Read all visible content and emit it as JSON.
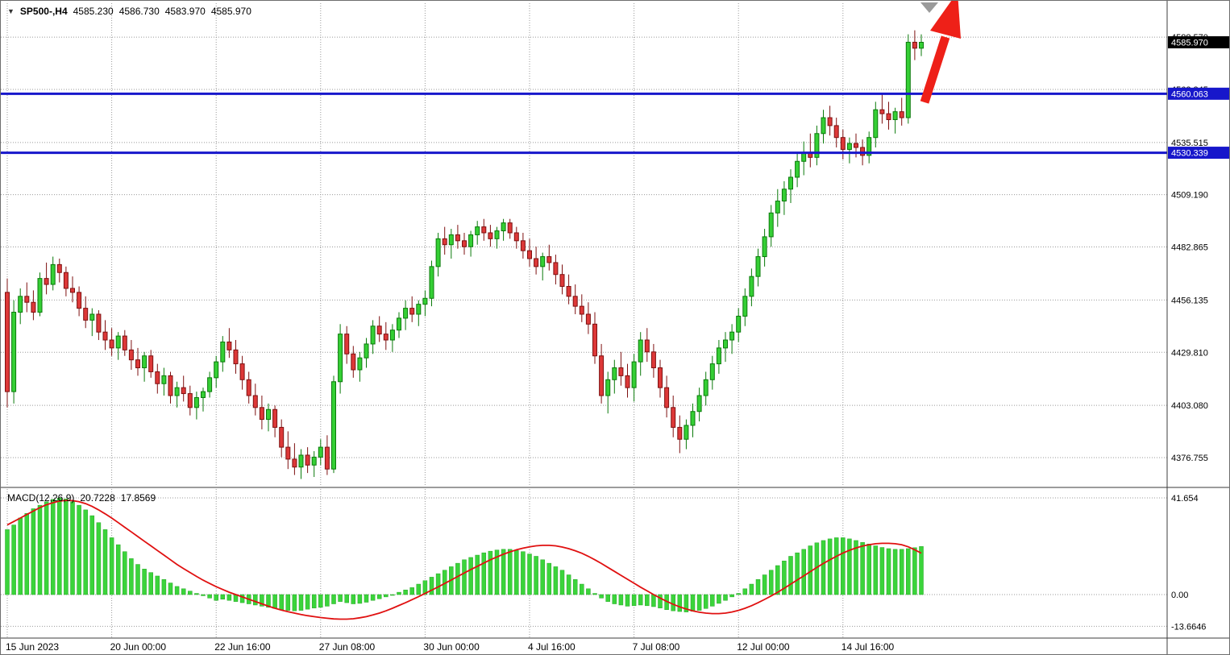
{
  "header": {
    "collapse_glyph": "▼",
    "symbol": "SP500-,H4",
    "open": "4585.230",
    "high": "4586.730",
    "low": "4583.970",
    "close": "4585.970"
  },
  "macd_header": {
    "label": "MACD(12,26,9)",
    "main_value": "20.7228",
    "signal_value": "17.8569"
  },
  "colors": {
    "bull": "#35cf35",
    "bull_border": "#0a7a0a",
    "bear": "#dd3838",
    "bear_border": "#7e1010",
    "hline": "#1717cb",
    "grid": "#999999",
    "macd_bar": "#3bd43b",
    "macd_bar_border": "#23a623",
    "signal": "#e01010",
    "arrow": "#ee2018",
    "last_badge_bg": "#000000"
  },
  "chart_data": {
    "type": "candlestick_with_macd",
    "title": "SP500-,H4",
    "symbol": "SP500",
    "timeframe": "H4",
    "ohlc_quote": {
      "open": 4585.23,
      "high": 4586.73,
      "low": 4583.97,
      "close": 4585.97
    },
    "last_price": 4585.97,
    "last_price_label": "4585.970",
    "y_axis": {
      "side": "right",
      "labels": [
        "4588.570",
        "4562.245",
        "4535.515",
        "4509.190",
        "4482.865",
        "4456.135",
        "4429.810",
        "4403.080",
        "4376.755"
      ]
    },
    "x_axis": {
      "label_every_n_candles": 16,
      "labels": [
        "15 Jun 2023",
        "20 Jun 00:00",
        "22 Jun 16:00",
        "27 Jun 08:00",
        "30 Jun 00:00",
        "4 Jul 16:00",
        "7 Jul 08:00",
        "12 Jul 00:00",
        "14 Jul 16:00"
      ]
    },
    "horizontal_lines": [
      {
        "price": 4560.063,
        "label": "4560.063"
      },
      {
        "price": 4530.339,
        "label": "4530.339"
      }
    ],
    "annotations": [
      {
        "type": "arrow",
        "direction": "up",
        "color": "red",
        "position": "top-right"
      }
    ],
    "candles": [
      [
        4460,
        4467,
        4402,
        4410
      ],
      [
        4410,
        4456,
        4404,
        4450
      ],
      [
        4450,
        4462,
        4444,
        4458
      ],
      [
        4458,
        4465,
        4450,
        4455
      ],
      [
        4455,
        4461,
        4446,
        4450
      ],
      [
        4450,
        4470,
        4448,
        4467
      ],
      [
        4467,
        4475,
        4459,
        4464
      ],
      [
        4464,
        4478,
        4461,
        4474
      ],
      [
        4474,
        4477,
        4465,
        4470
      ],
      [
        4470,
        4473,
        4458,
        4462
      ],
      [
        4462,
        4468,
        4455,
        4460
      ],
      [
        4460,
        4463,
        4448,
        4452
      ],
      [
        4452,
        4458,
        4442,
        4446
      ],
      [
        4446,
        4452,
        4438,
        4449
      ],
      [
        4449,
        4451,
        4436,
        4440
      ],
      [
        4440,
        4446,
        4431,
        4436
      ],
      [
        4436,
        4442,
        4428,
        4432
      ],
      [
        4432,
        4440,
        4426,
        4438
      ],
      [
        4438,
        4441,
        4428,
        4431
      ],
      [
        4431,
        4436,
        4421,
        4426
      ],
      [
        4426,
        4432,
        4418,
        4422
      ],
      [
        4422,
        4430,
        4415,
        4428
      ],
      [
        4428,
        4431,
        4417,
        4420
      ],
      [
        4420,
        4424,
        4409,
        4414
      ],
      [
        4414,
        4422,
        4408,
        4418
      ],
      [
        4418,
        4420,
        4404,
        4408
      ],
      [
        4408,
        4415,
        4402,
        4412
      ],
      [
        4412,
        4418,
        4405,
        4409
      ],
      [
        4409,
        4413,
        4398,
        4402
      ],
      [
        4402,
        4410,
        4396,
        4407
      ],
      [
        4407,
        4412,
        4400,
        4410
      ],
      [
        4410,
        4420,
        4407,
        4417
      ],
      [
        4417,
        4428,
        4412,
        4425
      ],
      [
        4425,
        4438,
        4420,
        4435
      ],
      [
        4435,
        4442,
        4427,
        4431
      ],
      [
        4431,
        4436,
        4419,
        4424
      ],
      [
        4424,
        4428,
        4411,
        4416
      ],
      [
        4416,
        4420,
        4404,
        4408
      ],
      [
        4408,
        4414,
        4398,
        4402
      ],
      [
        4402,
        4408,
        4391,
        4396
      ],
      [
        4396,
        4404,
        4390,
        4401
      ],
      [
        4401,
        4403,
        4387,
        4392
      ],
      [
        4392,
        4396,
        4377,
        4382
      ],
      [
        4382,
        4390,
        4371,
        4376
      ],
      [
        4376,
        4384,
        4368,
        4372
      ],
      [
        4372,
        4381,
        4366,
        4378
      ],
      [
        4378,
        4382,
        4369,
        4373
      ],
      [
        4373,
        4380,
        4367,
        4377
      ],
      [
        4377,
        4386,
        4373,
        4382
      ],
      [
        4382,
        4388,
        4368,
        4371
      ],
      [
        4371,
        4418,
        4369,
        4415
      ],
      [
        4415,
        4444,
        4409,
        4439
      ],
      [
        4439,
        4443,
        4424,
        4429
      ],
      [
        4429,
        4433,
        4417,
        4421
      ],
      [
        4421,
        4430,
        4415,
        4427
      ],
      [
        4427,
        4437,
        4422,
        4434
      ],
      [
        4434,
        4446,
        4429,
        4443
      ],
      [
        4443,
        4448,
        4435,
        4439
      ],
      [
        4439,
        4445,
        4431,
        4436
      ],
      [
        4436,
        4444,
        4430,
        4441
      ],
      [
        4441,
        4450,
        4437,
        4447
      ],
      [
        4447,
        4456,
        4441,
        4452
      ],
      [
        4452,
        4458,
        4445,
        4449
      ],
      [
        4449,
        4456,
        4443,
        4454
      ],
      [
        4454,
        4461,
        4448,
        4457
      ],
      [
        4457,
        4476,
        4453,
        4473
      ],
      [
        4473,
        4490,
        4468,
        4487
      ],
      [
        4487,
        4493,
        4479,
        4484
      ],
      [
        4484,
        4492,
        4477,
        4489
      ],
      [
        4489,
        4494,
        4482,
        4486
      ],
      [
        4486,
        4490,
        4479,
        4483
      ],
      [
        4483,
        4491,
        4478,
        4489
      ],
      [
        4489,
        4496,
        4484,
        4493
      ],
      [
        4493,
        4497,
        4486,
        4490
      ],
      [
        4490,
        4494,
        4483,
        4487
      ],
      [
        4487,
        4493,
        4482,
        4491
      ],
      [
        4491,
        4497,
        4486,
        4495
      ],
      [
        4495,
        4497,
        4487,
        4490
      ],
      [
        4490,
        4493,
        4482,
        4486
      ],
      [
        4486,
        4490,
        4477,
        4481
      ],
      [
        4481,
        4487,
        4473,
        4477
      ],
      [
        4477,
        4483,
        4469,
        4473
      ],
      [
        4473,
        4480,
        4466,
        4478
      ],
      [
        4478,
        4484,
        4471,
        4475
      ],
      [
        4475,
        4479,
        4464,
        4469
      ],
      [
        4469,
        4474,
        4459,
        4463
      ],
      [
        4463,
        4469,
        4454,
        4458
      ],
      [
        4458,
        4464,
        4449,
        4453
      ],
      [
        4453,
        4459,
        4445,
        4449
      ],
      [
        4449,
        4455,
        4439,
        4444
      ],
      [
        4444,
        4450,
        4424,
        4428
      ],
      [
        4428,
        4434,
        4404,
        4408
      ],
      [
        4408,
        4420,
        4399,
        4416
      ],
      [
        4416,
        4426,
        4409,
        4422
      ],
      [
        4422,
        4430,
        4413,
        4418
      ],
      [
        4418,
        4424,
        4407,
        4412
      ],
      [
        4412,
        4429,
        4405,
        4425
      ],
      [
        4425,
        4440,
        4418,
        4436
      ],
      [
        4436,
        4442,
        4425,
        4430
      ],
      [
        4430,
        4434,
        4417,
        4422
      ],
      [
        4422,
        4426,
        4407,
        4412
      ],
      [
        4412,
        4418,
        4397,
        4402
      ],
      [
        4402,
        4408,
        4387,
        4392
      ],
      [
        4392,
        4398,
        4379,
        4386
      ],
      [
        4386,
        4396,
        4381,
        4393
      ],
      [
        4393,
        4404,
        4387,
        4400
      ],
      [
        4400,
        4412,
        4395,
        4408
      ],
      [
        4408,
        4420,
        4403,
        4416
      ],
      [
        4416,
        4428,
        4411,
        4424
      ],
      [
        4424,
        4436,
        4419,
        4432
      ],
      [
        4432,
        4440,
        4425,
        4436
      ],
      [
        4436,
        4444,
        4429,
        4440
      ],
      [
        4440,
        4452,
        4435,
        4448
      ],
      [
        4448,
        4462,
        4443,
        4458
      ],
      [
        4458,
        4472,
        4453,
        4468
      ],
      [
        4468,
        4482,
        4463,
        4478
      ],
      [
        4478,
        4492,
        4473,
        4488
      ],
      [
        4488,
        4504,
        4483,
        4500
      ],
      [
        4500,
        4512,
        4493,
        4506
      ],
      [
        4506,
        4516,
        4499,
        4512
      ],
      [
        4512,
        4522,
        4505,
        4518
      ],
      [
        4518,
        4530,
        4513,
        4526
      ],
      [
        4526,
        4536,
        4519,
        4530
      ],
      [
        4530,
        4540,
        4523,
        4528
      ],
      [
        4528,
        4544,
        4524,
        4540
      ],
      [
        4540,
        4552,
        4535,
        4548
      ],
      [
        4548,
        4554,
        4539,
        4544
      ],
      [
        4544,
        4548,
        4533,
        4538
      ],
      [
        4538,
        4542,
        4527,
        4532
      ],
      [
        4532,
        4538,
        4525,
        4535
      ],
      [
        4535,
        4540,
        4528,
        4533
      ],
      [
        4533,
        4537,
        4524,
        4529
      ],
      [
        4529,
        4541,
        4525,
        4538
      ],
      [
        4538,
        4556,
        4533,
        4552
      ],
      [
        4552,
        4560,
        4545,
        4550
      ],
      [
        4550,
        4556,
        4542,
        4547
      ],
      [
        4547,
        4553,
        4540,
        4551
      ],
      [
        4551,
        4558,
        4544,
        4548
      ],
      [
        4548,
        4590,
        4545,
        4586
      ],
      [
        4586,
        4592,
        4577,
        4583
      ],
      [
        4583,
        4590,
        4579,
        4585.97
      ]
    ],
    "macd": {
      "name": "MACD",
      "params": "12,26,9",
      "current_macd": 20.7228,
      "current_signal": 17.8569,
      "levels": [
        "41.654",
        "0.00",
        "-13.6646"
      ],
      "histogram": [
        28,
        30,
        33,
        35,
        37,
        38.5,
        40,
        41,
        41.6,
        41.2,
        40,
        38.5,
        36.5,
        34,
        31,
        28,
        24.5,
        21.5,
        18.5,
        15.5,
        13,
        11,
        9.5,
        8,
        6.5,
        5,
        3.5,
        2.5,
        1.5,
        0.5,
        -0.5,
        -1.5,
        -2.5,
        -2,
        -2.5,
        -3,
        -3.5,
        -4,
        -4.5,
        -5,
        -5.5,
        -6,
        -6.5,
        -6.8,
        -7,
        -6.8,
        -6.3,
        -5.8,
        -5.5,
        -5,
        -4,
        -3,
        -3.5,
        -4,
        -3.8,
        -3.3,
        -2.5,
        -1.8,
        -1,
        0,
        1,
        2,
        3,
        4.5,
        6,
        7.5,
        9,
        10.5,
        12,
        13.5,
        15,
        16,
        17,
        18,
        18.7,
        19.2,
        19.5,
        19.5,
        19,
        18.5,
        17.5,
        16.5,
        15,
        13.5,
        12,
        10.5,
        8.5,
        6.5,
        4.5,
        2.5,
        0.5,
        -1.5,
        -3,
        -4,
        -4.5,
        -5,
        -4.8,
        -4.5,
        -4.8,
        -5.2,
        -5.8,
        -6.5,
        -7,
        -7.3,
        -7.5,
        -7.2,
        -6.8,
        -6,
        -5,
        -3.8,
        -2.5,
        -1,
        0.5,
        2.5,
        4.5,
        6.5,
        8.5,
        10.5,
        12.5,
        14.5,
        16.5,
        18,
        19.5,
        21,
        22.3,
        23.3,
        24,
        24.5,
        24.5,
        24,
        23.3,
        22.5,
        21.8,
        21,
        20.3,
        19.8,
        19.5,
        19.5,
        19.8,
        20.2,
        20.7228
      ],
      "signal": [
        30,
        31.5,
        33,
        34.5,
        36,
        37.5,
        38.7,
        39.6,
        40.3,
        40.6,
        40.5,
        40,
        39.2,
        38,
        36.5,
        34.8,
        33,
        31,
        29,
        27,
        25,
        23,
        21,
        19,
        17,
        15,
        13,
        11.2,
        9.5,
        7.8,
        6.2,
        4.8,
        3.4,
        2.2,
        1,
        0,
        -1,
        -2,
        -3,
        -4,
        -5,
        -5.9,
        -6.7,
        -7.4,
        -8,
        -8.6,
        -9.1,
        -9.5,
        -9.9,
        -10.2,
        -10.5,
        -10.6,
        -10.6,
        -10.4,
        -10,
        -9.5,
        -8.8,
        -8,
        -7,
        -5.9,
        -4.7,
        -3.5,
        -2.2,
        -0.9,
        0.5,
        1.9,
        3.3,
        4.8,
        6.3,
        7.8,
        9.3,
        10.8,
        12.2,
        13.6,
        15,
        16.2,
        17.4,
        18.4,
        19.3,
        20,
        20.6,
        21,
        21.2,
        21.2,
        21,
        20.5,
        19.8,
        18.9,
        17.8,
        16.5,
        15,
        13.4,
        11.7,
        10,
        8.3,
        6.6,
        4.9,
        3.2,
        1.6,
        0,
        -1.5,
        -2.9,
        -4.2,
        -5.3,
        -6.2,
        -7,
        -7.6,
        -8,
        -8.2,
        -8.2,
        -8,
        -7.5,
        -6.8,
        -5.9,
        -4.8,
        -3.5,
        -2.1,
        -0.6,
        1,
        2.7,
        4.5,
        6.3,
        8.1,
        9.9,
        11.7,
        13.4,
        15,
        16.5,
        17.9,
        19.1,
        20.1,
        20.9,
        21.5,
        21.9,
        22.1,
        22.1,
        21.9,
        21.5,
        20.6,
        19.3,
        17.8569
      ]
    }
  }
}
